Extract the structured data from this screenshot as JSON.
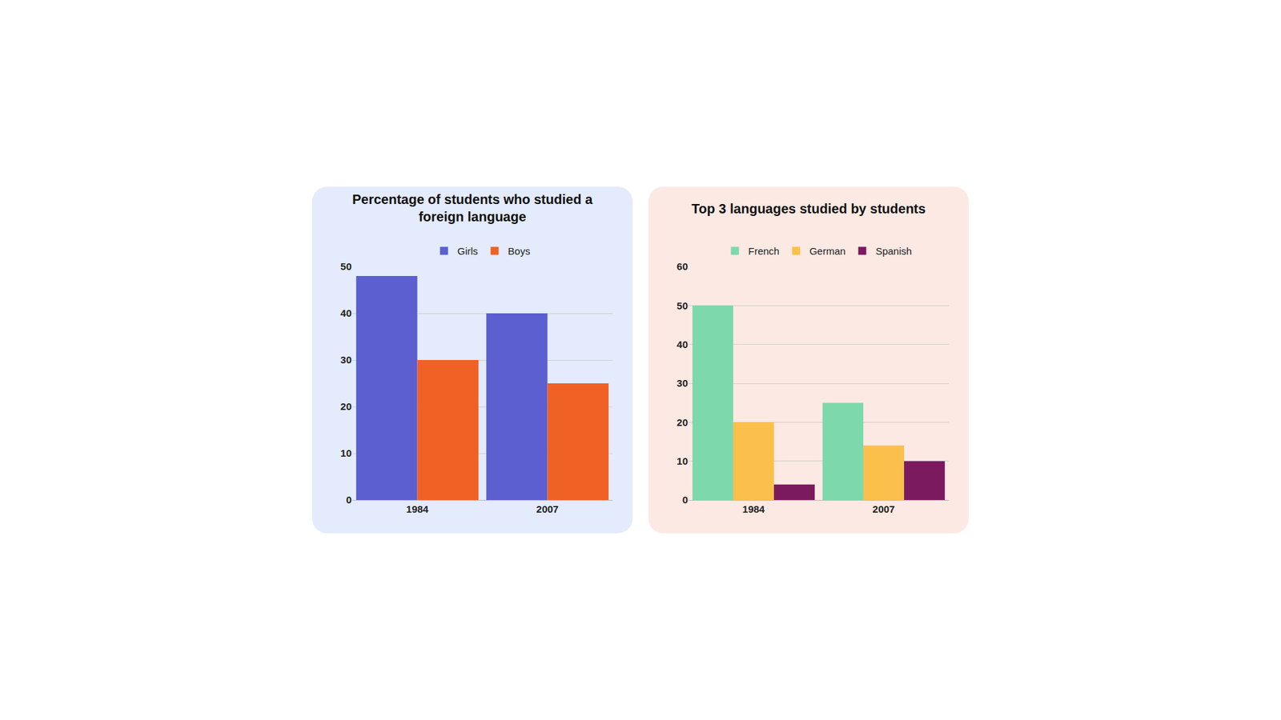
{
  "chart_data": [
    {
      "type": "bar",
      "title": "Percentage of students who studied a foreign language",
      "categories": [
        "1984",
        "2007"
      ],
      "series": [
        {
          "name": "Girls",
          "color": "#5b5fcf",
          "values": [
            48,
            40
          ]
        },
        {
          "name": "Boys",
          "color": "#f06125",
          "values": [
            30,
            25
          ]
        }
      ],
      "ylim": [
        0,
        50
      ],
      "yticks": [
        0,
        10,
        20,
        30,
        40,
        50
      ],
      "grid": true,
      "legend": "top"
    },
    {
      "type": "bar",
      "title": "Top 3 languages studied by students",
      "categories": [
        "1984",
        "2007"
      ],
      "series": [
        {
          "name": "French",
          "color": "#7dd8ac",
          "values": [
            50,
            25
          ]
        },
        {
          "name": "German",
          "color": "#fbc04c",
          "values": [
            20,
            14
          ]
        },
        {
          "name": "Spanish",
          "color": "#7b1a5e",
          "values": [
            4,
            10
          ]
        }
      ],
      "ylim": [
        0,
        60
      ],
      "yticks": [
        0,
        10,
        20,
        30,
        40,
        50,
        60
      ],
      "grid": true,
      "legend": "top"
    }
  ]
}
